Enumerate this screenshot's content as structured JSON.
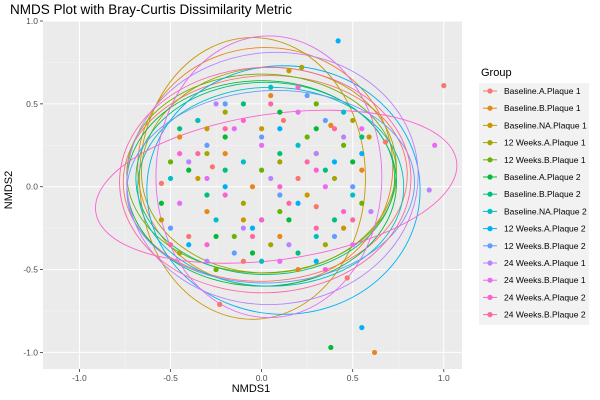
{
  "chart_data": {
    "type": "scatter",
    "title": "NMDS Plot with Bray-Curtis Dissimilarity Metric",
    "xlabel": "NMDS1",
    "ylabel": "NMDS2",
    "xlim": [
      -1.2,
      1.1
    ],
    "ylim": [
      -1.1,
      1.0
    ],
    "x_ticks": [
      -1.0,
      -0.5,
      0.0,
      0.5,
      1.0
    ],
    "x_tick_labels": [
      "-1.0",
      "-0.5",
      "0.0",
      "0.5",
      "1.0"
    ],
    "y_ticks": [
      -1.0,
      -0.5,
      0.0,
      0.5,
      1.0
    ],
    "y_tick_labels": [
      "-1.0",
      "-0.5",
      "0.0",
      "0.5",
      "1.0"
    ],
    "grid": true,
    "legend_position": "right",
    "legend_title": "Group",
    "series": [
      {
        "name": "Baseline.A.Plaque 1",
        "color": "#F8766D"
      },
      {
        "name": "Baseline.B.Plaque 1",
        "color": "#E7861B"
      },
      {
        "name": "Baseline.NA.Plaque 1",
        "color": "#C99800"
      },
      {
        "name": "12 Weeks.A.Plaque 1",
        "color": "#A3A500"
      },
      {
        "name": "12 Weeks.B.Plaque 1",
        "color": "#6BB100"
      },
      {
        "name": "Baseline.A.Plaque 2",
        "color": "#00BA38"
      },
      {
        "name": "Baseline.B.Plaque 2",
        "color": "#00BF7D"
      },
      {
        "name": "Baseline.NA.Plaque 2",
        "color": "#00BFC4"
      },
      {
        "name": "12 Weeks.A.Plaque 2",
        "color": "#00B0F6"
      },
      {
        "name": "12 Weeks.B.Plaque 2",
        "color": "#619CFF"
      },
      {
        "name": "24 Weeks.A.Plaque 1",
        "color": "#B983FF"
      },
      {
        "name": "24 Weeks.B.Plaque 1",
        "color": "#E76BF3"
      },
      {
        "name": "24 Weeks.A.Plaque 2",
        "color": "#FD61D1"
      },
      {
        "name": "24 Weeks.B.Plaque 2",
        "color": "#FF67A4"
      }
    ],
    "ellipses": [
      {
        "series": "Baseline.A.Plaque 1",
        "cx": 0.02,
        "cy": 0.05,
        "rx": 0.78,
        "ry": 0.62,
        "angle": -3
      },
      {
        "series": "Baseline.B.Plaque 1",
        "cx": 0.02,
        "cy": 0.12,
        "rx": 0.7,
        "ry": 0.72,
        "angle": 0
      },
      {
        "series": "Baseline.NA.Plaque 1",
        "cx": -0.05,
        "cy": 0.05,
        "rx": 0.62,
        "ry": 0.85,
        "angle": 0
      },
      {
        "series": "12 Weeks.A.Plaque 1",
        "cx": 0.04,
        "cy": 0.1,
        "rx": 0.7,
        "ry": 0.62,
        "angle": -3
      },
      {
        "series": "12 Weeks.B.Plaque 1",
        "cx": 0.0,
        "cy": 0.08,
        "rx": 0.74,
        "ry": 0.6,
        "angle": 0
      },
      {
        "series": "Baseline.A.Plaque 2",
        "cx": 0.0,
        "cy": 0.02,
        "rx": 0.74,
        "ry": 0.62,
        "angle": 0
      },
      {
        "series": "Baseline.B.Plaque 2",
        "cx": 0.02,
        "cy": 0.05,
        "rx": 0.71,
        "ry": 0.58,
        "angle": 0
      },
      {
        "series": "Baseline.NA.Plaque 2",
        "cx": 0.05,
        "cy": 0.0,
        "rx": 0.73,
        "ry": 0.6,
        "angle": 0
      },
      {
        "series": "12 Weeks.A.Plaque 2",
        "cx": 0.12,
        "cy": -0.02,
        "rx": 0.75,
        "ry": 0.75,
        "angle": 0
      },
      {
        "series": "12 Weeks.B.Plaque 2",
        "cx": 0.05,
        "cy": 0.0,
        "rx": 0.79,
        "ry": 0.58,
        "angle": -3
      },
      {
        "series": "24 Weeks.A.Plaque 1",
        "cx": 0.06,
        "cy": 0.05,
        "rx": 0.8,
        "ry": 0.76,
        "angle": -5
      },
      {
        "series": "24 Weeks.B.Plaque 1",
        "cx": 0.04,
        "cy": 0.06,
        "rx": 0.62,
        "ry": 0.85,
        "angle": 0
      },
      {
        "series": "24 Weeks.A.Plaque 2",
        "cx": 0.08,
        "cy": 0.0,
        "rx": 1.0,
        "ry": 0.44,
        "angle": -8
      },
      {
        "series": "24 Weeks.B.Plaque 2",
        "cx": 0.02,
        "cy": 0.04,
        "rx": 0.8,
        "ry": 0.68,
        "angle": -2
      }
    ],
    "points": [
      [
        1.0,
        0.61,
        0
      ],
      [
        0.68,
        0.27,
        0
      ],
      [
        0.47,
        -0.55,
        0
      ],
      [
        -0.27,
        0.12,
        0
      ],
      [
        0.12,
        0.4,
        0
      ],
      [
        -0.4,
        -0.3,
        0
      ],
      [
        0.3,
        -0.12,
        0
      ],
      [
        -0.55,
        0.02,
        0
      ],
      [
        0.2,
        0.05,
        0
      ],
      [
        -0.1,
        -0.45,
        0
      ],
      [
        -0.23,
        -0.71,
        0
      ],
      [
        0.38,
        0.37,
        1
      ],
      [
        -0.2,
        0.2,
        1
      ],
      [
        0.1,
        -0.3,
        1
      ],
      [
        -0.45,
        0.3,
        1
      ],
      [
        0.55,
        0.1,
        1
      ],
      [
        -0.3,
        -0.15,
        1
      ],
      [
        0.2,
        -0.5,
        1
      ],
      [
        0.05,
        0.55,
        1
      ],
      [
        -0.05,
        0.0,
        1
      ],
      [
        0.62,
        -1.0,
        1
      ],
      [
        0.59,
        0.3,
        2
      ],
      [
        -0.3,
        0.35,
        2
      ],
      [
        0.3,
        0.2,
        2
      ],
      [
        -0.1,
        -0.2,
        2
      ],
      [
        0.15,
        0.7,
        2
      ],
      [
        -0.55,
        -0.2,
        2
      ],
      [
        0.45,
        -0.25,
        2
      ],
      [
        0.0,
        0.35,
        2
      ],
      [
        -0.35,
        0.05,
        2
      ],
      [
        0.25,
        -0.05,
        2
      ],
      [
        0.22,
        0.72,
        3
      ],
      [
        -0.2,
        0.45,
        3
      ],
      [
        0.35,
        -0.35,
        3
      ],
      [
        -0.45,
        -0.4,
        3
      ],
      [
        0.1,
        0.15,
        3
      ],
      [
        0.5,
        0.4,
        3
      ],
      [
        -0.1,
        -0.1,
        3
      ],
      [
        0.4,
        0.05,
        3
      ],
      [
        -0.3,
        0.2,
        3
      ],
      [
        0.05,
        -0.35,
        3
      ],
      [
        -0.5,
        0.15,
        4
      ],
      [
        -0.15,
        -0.3,
        4
      ],
      [
        0.25,
        0.3,
        4
      ],
      [
        0.55,
        -0.1,
        4
      ],
      [
        -0.35,
        0.4,
        4
      ],
      [
        0.1,
        -0.15,
        4
      ],
      [
        -0.25,
        -0.5,
        4
      ],
      [
        0.3,
        0.5,
        4
      ],
      [
        0.0,
        0.1,
        4
      ],
      [
        0.45,
        0.25,
        4
      ],
      [
        0.38,
        -0.97,
        5
      ],
      [
        -0.4,
        0.1,
        5
      ],
      [
        0.15,
        -0.2,
        5
      ],
      [
        -0.2,
        0.3,
        5
      ],
      [
        0.5,
        0.15,
        5
      ],
      [
        -0.05,
        -0.4,
        5
      ],
      [
        0.3,
        0.35,
        5
      ],
      [
        -0.55,
        -0.1,
        5
      ],
      [
        0.1,
        0.45,
        5
      ],
      [
        -0.25,
        -0.3,
        5
      ],
      [
        0.1,
        0.2,
        6
      ],
      [
        -0.3,
        -0.05,
        6
      ],
      [
        0.4,
        -0.2,
        6
      ],
      [
        -0.1,
        0.5,
        6
      ],
      [
        0.2,
        -0.4,
        6
      ],
      [
        -0.45,
        0.35,
        6
      ],
      [
        0.55,
        0.3,
        6
      ],
      [
        0.0,
        -0.2,
        6
      ],
      [
        -0.2,
        0.1,
        6
      ],
      [
        0.35,
        0.1,
        6
      ],
      [
        -0.35,
        0.4,
        7
      ],
      [
        0.0,
        -0.45,
        7
      ],
      [
        0.5,
        -0.05,
        7
      ],
      [
        -0.25,
        -0.2,
        7
      ],
      [
        0.2,
        0.25,
        7
      ],
      [
        -0.5,
        0.05,
        7
      ],
      [
        0.3,
        -0.3,
        7
      ],
      [
        0.05,
        0.6,
        7
      ],
      [
        -0.1,
        0.15,
        7
      ],
      [
        0.45,
        0.45,
        7
      ],
      [
        0.42,
        0.88,
        8
      ],
      [
        -0.2,
        0.0,
        8
      ],
      [
        0.3,
        -0.45,
        8
      ],
      [
        0.55,
        0.2,
        8
      ],
      [
        -0.4,
        -0.35,
        8
      ],
      [
        0.1,
        0.35,
        8
      ],
      [
        0.2,
        -0.1,
        8
      ],
      [
        -0.05,
        -0.25,
        8
      ],
      [
        0.4,
        0.15,
        8
      ],
      [
        0.55,
        -0.85,
        8
      ],
      [
        0.35,
        0.4,
        9
      ],
      [
        -0.15,
        -0.4,
        9
      ],
      [
        0.5,
        0.0,
        9
      ],
      [
        -0.3,
        0.25,
        9
      ],
      [
        0.1,
        -0.05,
        9
      ],
      [
        -0.5,
        -0.25,
        9
      ],
      [
        0.25,
        0.55,
        9
      ],
      [
        0.0,
        0.3,
        9
      ],
      [
        0.4,
        -0.3,
        9
      ],
      [
        -0.2,
        0.5,
        9
      ],
      [
        0.92,
        -0.02,
        10
      ],
      [
        -0.25,
        0.5,
        10
      ],
      [
        0.15,
        -0.35,
        10
      ],
      [
        0.45,
        0.3,
        10
      ],
      [
        -0.4,
        0.15,
        10
      ],
      [
        0.05,
        0.05,
        10
      ],
      [
        -0.1,
        -0.25,
        10
      ],
      [
        0.3,
        0.2,
        10
      ],
      [
        0.6,
        -0.15,
        10
      ],
      [
        -0.3,
        -0.45,
        10
      ],
      [
        0.2,
        0.45,
        11
      ],
      [
        -0.45,
        -0.1,
        11
      ],
      [
        0.5,
        -0.35,
        11
      ],
      [
        -0.15,
        0.35,
        11
      ],
      [
        0.1,
        -0.45,
        11
      ],
      [
        0.35,
        0.0,
        11
      ],
      [
        -0.3,
        0.05,
        11
      ],
      [
        0.0,
        0.25,
        11
      ],
      [
        0.55,
        0.35,
        11
      ],
      [
        0.95,
        0.25,
        11
      ],
      [
        0.0,
        -0.2,
        12
      ],
      [
        0.3,
        0.1,
        12
      ],
      [
        -0.3,
        -0.35,
        12
      ],
      [
        0.45,
        -0.15,
        12
      ],
      [
        -0.1,
        0.4,
        12
      ],
      [
        0.2,
        0.6,
        12
      ],
      [
        -0.45,
        0.2,
        12
      ],
      [
        0.1,
        0.0,
        12
      ],
      [
        0.35,
        -0.5,
        12
      ],
      [
        -0.2,
        -0.05,
        12
      ],
      [
        0.15,
        -0.1,
        13
      ],
      [
        -0.35,
        0.2,
        13
      ],
      [
        0.4,
        0.35,
        13
      ],
      [
        -0.05,
        -0.3,
        13
      ],
      [
        0.25,
        0.15,
        13
      ],
      [
        -0.5,
        -0.35,
        13
      ],
      [
        0.5,
        -0.2,
        13
      ],
      [
        0.05,
        0.5,
        13
      ],
      [
        -0.2,
        0.35,
        13
      ],
      [
        0.3,
        -0.25,
        13
      ]
    ]
  }
}
